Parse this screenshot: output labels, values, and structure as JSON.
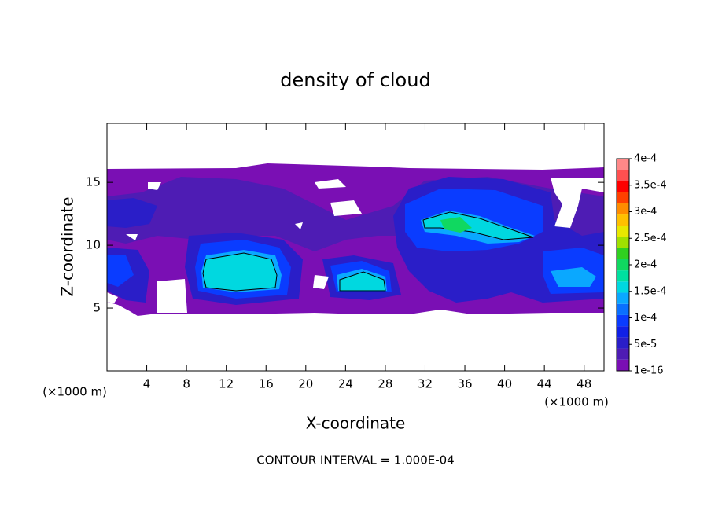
{
  "chart_data": {
    "type": "contour",
    "title": "density of cloud",
    "x_label": "X-coordinate",
    "y_label": "Z-coordinate",
    "x_unit": "(×1000 m)",
    "footnote": "CONTOUR INTERVAL = 1.000E-04",
    "xlim": [
      0,
      50
    ],
    "xticks": [
      4,
      8,
      12,
      16,
      20,
      24,
      28,
      32,
      36,
      40,
      44,
      48
    ],
    "ylim": [
      0,
      19.7
    ],
    "yticks": [
      5,
      10,
      15
    ],
    "colorbar": {
      "ticks": [
        {
          "value": 1e-16,
          "label": "1e-16"
        },
        {
          "value": 5e-05,
          "label": "5e-5"
        },
        {
          "value": 0.0001,
          "label": "1e-4"
        },
        {
          "value": 0.00015,
          "label": "1.5e-4"
        },
        {
          "value": 0.0002,
          "label": "2e-4"
        },
        {
          "value": 0.00025,
          "label": "2.5e-4"
        },
        {
          "value": 0.0003,
          "label": "3e-4"
        },
        {
          "value": 0.00035,
          "label": "3.5e-4"
        },
        {
          "value": 0.0004,
          "label": "4e-4"
        }
      ],
      "colors": [
        "#7a0fb4",
        "#4e1cb4",
        "#2a1ec8",
        "#1020e6",
        "#0a3cff",
        "#0a70ff",
        "#0aa8ff",
        "#00d8e0",
        "#00e0a0",
        "#10d860",
        "#30d020",
        "#a0e000",
        "#e8e800",
        "#ffc000",
        "#ff8c00",
        "#ff4000",
        "#ff0000",
        "#ff5050",
        "#ff8888"
      ]
    }
  }
}
